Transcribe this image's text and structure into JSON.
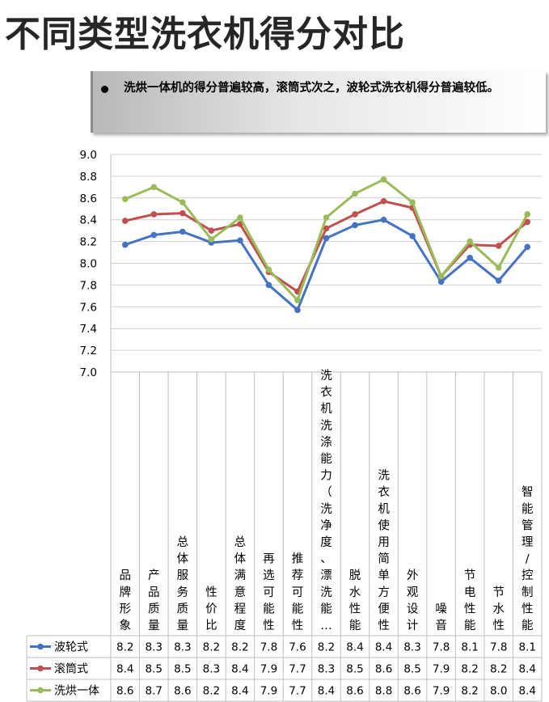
{
  "title": "不同类型洗衣机得分对比",
  "callout": {
    "text": "洗烘一体机的得分普遍较高，滚筒式次之，波轮式洗衣机得分普遍较低。"
  },
  "chart_data": {
    "type": "line",
    "categories": [
      "品牌形象",
      "产品质量",
      "总体服务质量",
      "性价比",
      "总体满意程度",
      "再选可能性",
      "推荐可能性",
      "洗衣机洗涤能力（洗净度、漂洗能…",
      "脱水性能",
      "洗衣机使用简单方便性",
      "外观设计",
      "噪音",
      "节电性能",
      "节水性",
      "智能管理/控制性能"
    ],
    "series": [
      {
        "name": "波轮式",
        "color": "#4472c4",
        "values": [
          8.17,
          8.26,
          8.29,
          8.19,
          8.21,
          7.8,
          7.57,
          8.23,
          8.35,
          8.4,
          8.25,
          7.83,
          8.05,
          7.84,
          8.15
        ],
        "labels": [
          "8.2",
          "8.3",
          "8.3",
          "8.2",
          "8.2",
          "7.8",
          "7.6",
          "8.2",
          "8.4",
          "8.4",
          "8.3",
          "7.8",
          "8.1",
          "7.8",
          "8.1"
        ]
      },
      {
        "name": "滚筒式",
        "color": "#c0504d",
        "values": [
          8.39,
          8.45,
          8.46,
          8.3,
          8.36,
          7.92,
          7.74,
          8.32,
          8.45,
          8.57,
          8.51,
          7.88,
          8.17,
          8.16,
          8.38
        ],
        "labels": [
          "8.4",
          "8.5",
          "8.5",
          "8.3",
          "8.4",
          "7.9",
          "7.7",
          "8.3",
          "8.5",
          "8.6",
          "8.5",
          "7.9",
          "8.2",
          "8.2",
          "8.4"
        ]
      },
      {
        "name": "洗烘一体",
        "color": "#9bbb59",
        "values": [
          8.59,
          8.7,
          8.56,
          8.22,
          8.42,
          7.94,
          7.66,
          8.42,
          8.64,
          8.77,
          8.56,
          7.88,
          8.2,
          7.96,
          8.45
        ],
        "labels": [
          "8.6",
          "8.7",
          "8.6",
          "8.2",
          "8.4",
          "7.9",
          "7.7",
          "8.4",
          "8.6",
          "8.8",
          "8.6",
          "7.9",
          "8.2",
          "8.0",
          "8.4"
        ]
      }
    ],
    "y_ticks": [
      "9.0",
      "8.8",
      "8.6",
      "8.4",
      "8.2",
      "8.0",
      "7.8",
      "7.6",
      "7.4",
      "7.2",
      "7.0"
    ],
    "ylim": [
      7.0,
      9.0
    ],
    "grid": true,
    "legend": "data-table"
  }
}
